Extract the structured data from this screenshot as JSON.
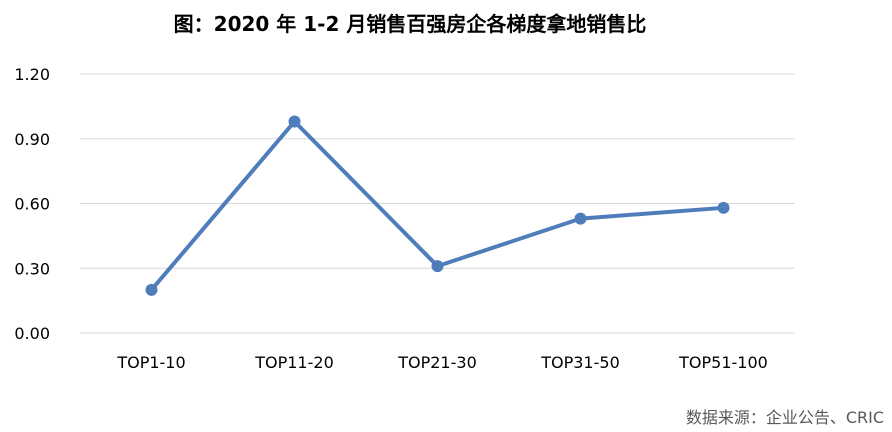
{
  "chart_data": {
    "type": "line",
    "title": "图：2020 年 1-2 月销售百强房企各梯度拿地销售比",
    "categories": [
      "TOP1-10",
      "TOP11-20",
      "TOP21-30",
      "TOP31-50",
      "TOP51-100"
    ],
    "series": [
      {
        "name": "",
        "values": [
          0.2,
          0.98,
          0.31,
          0.53,
          0.58
        ]
      }
    ],
    "y_ticks": [
      "0.00",
      "0.30",
      "0.60",
      "0.90",
      "1.20"
    ],
    "ylim": [
      0,
      1.2
    ],
    "grid": true,
    "xlabel": "",
    "ylabel": "",
    "line_color": "#4F7DBB",
    "grid_color": "#D9D9D9"
  },
  "source_text": "数据来源：企业公告、CRIC"
}
